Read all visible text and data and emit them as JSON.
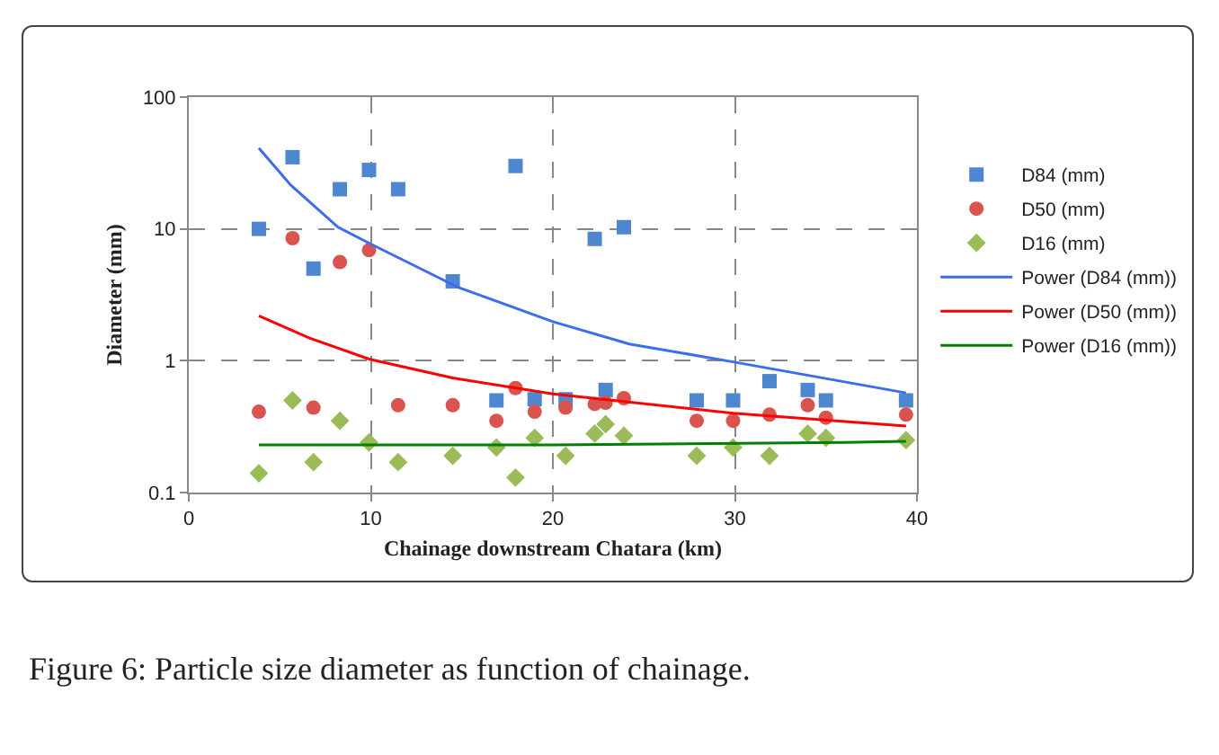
{
  "chart_data": {
    "type": "scatter",
    "xlabel": "Chainage downstream Chatara (km)",
    "ylabel": "Diameter (mm)",
    "xlim": [
      0,
      40
    ],
    "xticks": [
      0,
      10,
      20,
      30,
      40
    ],
    "ylim": [
      0.1,
      100
    ],
    "yticks": [
      0.1,
      1,
      10,
      100
    ],
    "log": true,
    "grid": true,
    "legend": "right",
    "line_style": "solid",
    "annotations": [
      "Figure 6: Particle size diameter as function of chainage."
    ],
    "series": [
      {
        "name": "D84 (mm)",
        "marker": "square",
        "color": "#4f86d0",
        "x": [
          3.85,
          5.7,
          6.85,
          8.3,
          9.9,
          11.5,
          14.5,
          16.9,
          17.95,
          19.0,
          20.7,
          22.3,
          22.9,
          23.9,
          27.9,
          29.9,
          31.9,
          34.0,
          35.0,
          39.4
        ],
        "values": [
          10,
          35,
          5.0,
          20,
          28,
          20,
          4.0,
          0.5,
          30,
          0.51,
          0.51,
          8.4,
          0.6,
          10.3,
          0.5,
          0.5,
          0.7,
          0.6,
          0.5,
          0.5
        ]
      },
      {
        "name": "D50 (mm)",
        "marker": "circle",
        "color": "#d9534f",
        "x": [
          3.85,
          5.7,
          6.85,
          8.3,
          9.9,
          11.5,
          14.5,
          16.9,
          17.95,
          19.0,
          20.7,
          22.3,
          22.9,
          23.9,
          27.9,
          29.9,
          31.9,
          34.0,
          35.0,
          39.4
        ],
        "values": [
          0.41,
          8.5,
          0.44,
          5.6,
          6.9,
          0.46,
          0.46,
          0.35,
          0.62,
          0.41,
          0.44,
          0.47,
          0.48,
          0.52,
          0.35,
          0.35,
          0.39,
          0.46,
          0.37,
          0.39
        ]
      },
      {
        "name": "D16 (mm)",
        "marker": "diamond",
        "color": "#9bbb59",
        "x": [
          3.85,
          5.7,
          6.85,
          8.3,
          9.9,
          11.5,
          14.5,
          16.9,
          17.95,
          19.0,
          20.7,
          22.3,
          22.9,
          23.9,
          27.9,
          29.9,
          31.9,
          34.0,
          35.0,
          39.4
        ],
        "values": [
          0.14,
          0.5,
          0.17,
          0.35,
          0.24,
          0.17,
          0.19,
          0.22,
          0.13,
          0.26,
          0.19,
          0.28,
          0.33,
          0.27,
          0.19,
          0.22,
          0.19,
          0.28,
          0.26,
          0.25
        ]
      },
      {
        "name": "Power (D84 (mm))",
        "type": "line",
        "marker": "none",
        "color": "#3c6cf0",
        "x": [
          3.85,
          5.6,
          8.2,
          9.9,
          14.8,
          20.0,
          24.2,
          29.9,
          39.4
        ],
        "values": [
          41,
          21.5,
          10.3,
          7.8,
          3.6,
          1.98,
          1.34,
          0.98,
          0.57
        ]
      },
      {
        "name": "Power (D50 (mm))",
        "type": "line",
        "marker": "none",
        "color": "#ff0000",
        "x": [
          3.85,
          6.6,
          9.9,
          14.5,
          20.0,
          29.9,
          39.4
        ],
        "values": [
          2.19,
          1.49,
          1.03,
          0.74,
          0.56,
          0.4,
          0.32
        ]
      },
      {
        "name": "Power (D16 (mm))",
        "type": "line",
        "marker": "none",
        "color": "#008000",
        "x": [
          3.85,
          20.0,
          36.0,
          39.4
        ],
        "values": [
          0.23,
          0.23,
          0.24,
          0.245
        ]
      }
    ]
  }
}
